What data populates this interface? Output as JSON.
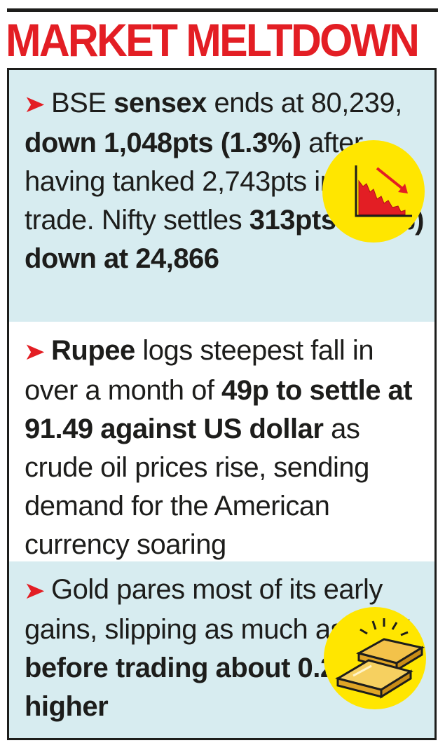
{
  "title": "MARKET MELTDOWN",
  "colors": {
    "accent": "#e31e24",
    "panel": "#d7ecf0",
    "circle": "#ffe600",
    "text": "#1d1d1b"
  },
  "arrow_glyph": "➤",
  "icons": [
    "falling-chart-icon",
    "gold-bars-icon"
  ],
  "items": [
    {
      "segments": [
        {
          "t": "BSE ",
          "b": false
        },
        {
          "t": "sensex",
          "b": true
        },
        {
          "t": " ends at 80,239, ",
          "b": false
        },
        {
          "t": "down 1,048pts (1.3%)",
          "b": true
        },
        {
          "t": " after having tanked 2,743pts in early trade. Nifty settles ",
          "b": false
        },
        {
          "t": "313pts (1.2%) down at 24,866",
          "b": true
        }
      ]
    },
    {
      "segments": [
        {
          "t": "Rupee",
          "b": true
        },
        {
          "t": " logs steepest fall in over a month of ",
          "b": false
        },
        {
          "t": "49p to settle at 91.49 against US dollar",
          "b": true
        },
        {
          "t": " as crude oil prices rise, sending demand for the American currency soaring",
          "b": false
        }
      ]
    },
    {
      "segments": [
        {
          "t": "Gold pares most of its early gains, slipping as much as ",
          "b": false
        },
        {
          "t": "0.3% before trading about 0.2% higher",
          "b": true
        }
      ]
    }
  ]
}
